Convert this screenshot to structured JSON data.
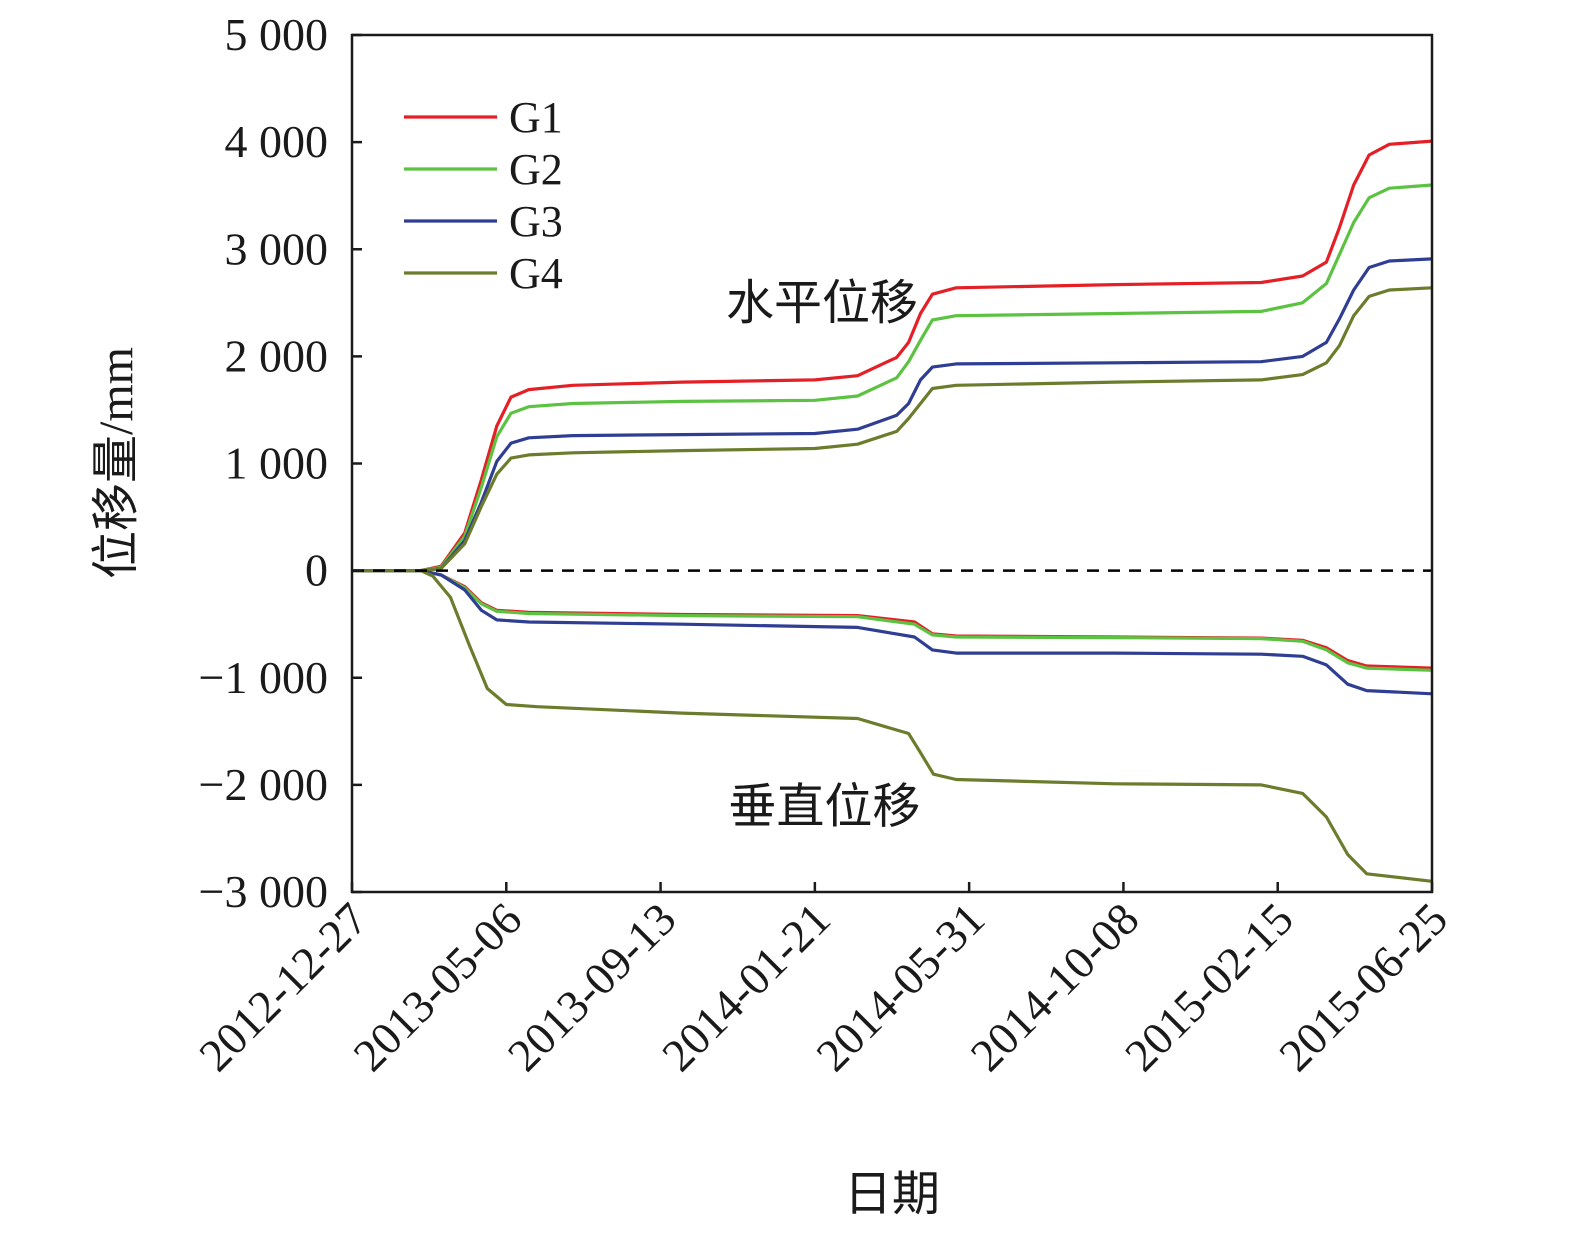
{
  "chart_data": {
    "type": "line",
    "title": "",
    "xlabel": "日期",
    "ylabel": "位移量/mm",
    "x_ticks": [
      "2012-12-27",
      "2013-05-06",
      "2013-09-13",
      "2014-01-21",
      "2014-05-31",
      "2014-10-08",
      "2015-02-15",
      "2015-06-25"
    ],
    "xlim": [
      "2012-12-27",
      "2015-06-25"
    ],
    "ylim": [
      -3000,
      5000
    ],
    "y_ticks": [
      -3000,
      -2000,
      -1000,
      0,
      1000,
      2000,
      3000,
      4000,
      5000
    ],
    "y_tick_labels": [
      "−3 000",
      "−2 000",
      "−1 000",
      "0",
      "1 000",
      "2 000",
      "3 000",
      "4 000",
      "5 000"
    ],
    "grid": false,
    "legend_position": "top-left",
    "zero_line": "dashed",
    "annotations": [
      {
        "text": "水平位移",
        "x": "2014-01-27",
        "y": 2500
      },
      {
        "text": "垂直位移",
        "x": "2014-01-29",
        "y": -2200
      }
    ],
    "series": [
      {
        "name": "G1",
        "color": "#e41f26",
        "group": "horizontal",
        "points": [
          [
            "2012-12-27",
            0
          ],
          [
            "2013-02-23",
            0
          ],
          [
            "2013-03-12",
            40
          ],
          [
            "2013-04-01",
            350
          ],
          [
            "2013-04-15",
            850
          ],
          [
            "2013-04-28",
            1350
          ],
          [
            "2013-05-10",
            1620
          ],
          [
            "2013-05-25",
            1690
          ],
          [
            "2013-07-01",
            1730
          ],
          [
            "2013-10-01",
            1760
          ],
          [
            "2014-01-21",
            1780
          ],
          [
            "2014-02-26",
            1820
          ],
          [
            "2014-03-31",
            1990
          ],
          [
            "2014-04-10",
            2130
          ],
          [
            "2014-04-20",
            2400
          ],
          [
            "2014-04-30",
            2580
          ],
          [
            "2014-05-20",
            2640
          ],
          [
            "2014-10-01",
            2670
          ],
          [
            "2015-02-01",
            2690
          ],
          [
            "2015-03-08",
            2750
          ],
          [
            "2015-03-28",
            2880
          ],
          [
            "2015-04-08",
            3200
          ],
          [
            "2015-04-20",
            3600
          ],
          [
            "2015-05-03",
            3880
          ],
          [
            "2015-05-20",
            3980
          ],
          [
            "2015-06-25",
            4010
          ]
        ]
      },
      {
        "name": "G2",
        "color": "#5cc242",
        "group": "horizontal",
        "points": [
          [
            "2012-12-27",
            0
          ],
          [
            "2013-02-23",
            0
          ],
          [
            "2013-03-12",
            30
          ],
          [
            "2013-04-01",
            320
          ],
          [
            "2013-04-15",
            780
          ],
          [
            "2013-04-28",
            1250
          ],
          [
            "2013-05-10",
            1470
          ],
          [
            "2013-05-25",
            1530
          ],
          [
            "2013-07-01",
            1560
          ],
          [
            "2013-10-01",
            1580
          ],
          [
            "2014-01-21",
            1590
          ],
          [
            "2014-02-26",
            1630
          ],
          [
            "2014-03-31",
            1800
          ],
          [
            "2014-04-10",
            1950
          ],
          [
            "2014-04-20",
            2150
          ],
          [
            "2014-04-30",
            2340
          ],
          [
            "2014-05-20",
            2380
          ],
          [
            "2014-10-01",
            2400
          ],
          [
            "2015-02-01",
            2420
          ],
          [
            "2015-03-08",
            2500
          ],
          [
            "2015-03-28",
            2680
          ],
          [
            "2015-04-08",
            2950
          ],
          [
            "2015-04-20",
            3250
          ],
          [
            "2015-05-03",
            3480
          ],
          [
            "2015-05-20",
            3570
          ],
          [
            "2015-06-25",
            3600
          ]
        ]
      },
      {
        "name": "G3",
        "color": "#2f3e93",
        "group": "horizontal",
        "points": [
          [
            "2012-12-27",
            0
          ],
          [
            "2013-02-23",
            0
          ],
          [
            "2013-03-12",
            20
          ],
          [
            "2013-04-01",
            280
          ],
          [
            "2013-04-15",
            640
          ],
          [
            "2013-04-28",
            1020
          ],
          [
            "2013-05-10",
            1190
          ],
          [
            "2013-05-25",
            1240
          ],
          [
            "2013-07-01",
            1260
          ],
          [
            "2013-10-01",
            1270
          ],
          [
            "2014-01-21",
            1280
          ],
          [
            "2014-02-26",
            1320
          ],
          [
            "2014-03-31",
            1450
          ],
          [
            "2014-04-10",
            1560
          ],
          [
            "2014-04-20",
            1780
          ],
          [
            "2014-04-30",
            1900
          ],
          [
            "2014-05-20",
            1930
          ],
          [
            "2014-10-01",
            1940
          ],
          [
            "2015-02-01",
            1950
          ],
          [
            "2015-03-08",
            2000
          ],
          [
            "2015-03-28",
            2130
          ],
          [
            "2015-04-08",
            2350
          ],
          [
            "2015-04-20",
            2620
          ],
          [
            "2015-05-03",
            2830
          ],
          [
            "2015-05-20",
            2890
          ],
          [
            "2015-06-25",
            2910
          ]
        ]
      },
      {
        "name": "G4",
        "color": "#6b7d2c",
        "group": "horizontal",
        "points": [
          [
            "2012-12-27",
            0
          ],
          [
            "2013-02-23",
            0
          ],
          [
            "2013-03-12",
            20
          ],
          [
            "2013-04-01",
            250
          ],
          [
            "2013-04-15",
            600
          ],
          [
            "2013-04-28",
            900
          ],
          [
            "2013-05-10",
            1050
          ],
          [
            "2013-05-25",
            1080
          ],
          [
            "2013-07-01",
            1100
          ],
          [
            "2013-10-01",
            1120
          ],
          [
            "2014-01-21",
            1140
          ],
          [
            "2014-02-26",
            1180
          ],
          [
            "2014-03-31",
            1300
          ],
          [
            "2014-04-10",
            1420
          ],
          [
            "2014-04-20",
            1560
          ],
          [
            "2014-04-30",
            1700
          ],
          [
            "2014-05-20",
            1730
          ],
          [
            "2014-10-01",
            1760
          ],
          [
            "2015-02-01",
            1780
          ],
          [
            "2015-03-08",
            1830
          ],
          [
            "2015-03-28",
            1940
          ],
          [
            "2015-04-08",
            2100
          ],
          [
            "2015-04-20",
            2380
          ],
          [
            "2015-05-03",
            2560
          ],
          [
            "2015-05-20",
            2620
          ],
          [
            "2015-06-25",
            2640
          ]
        ]
      },
      {
        "name": "G1",
        "color": "#e41f26",
        "group": "vertical",
        "points": [
          [
            "2012-12-27",
            0
          ],
          [
            "2013-02-23",
            0
          ],
          [
            "2013-03-12",
            -40
          ],
          [
            "2013-04-01",
            -150
          ],
          [
            "2013-04-15",
            -300
          ],
          [
            "2013-04-28",
            -370
          ],
          [
            "2013-05-25",
            -390
          ],
          [
            "2013-10-01",
            -410
          ],
          [
            "2014-02-26",
            -420
          ],
          [
            "2014-04-15",
            -480
          ],
          [
            "2014-04-30",
            -590
          ],
          [
            "2014-05-20",
            -610
          ],
          [
            "2014-10-01",
            -620
          ],
          [
            "2015-02-01",
            -630
          ],
          [
            "2015-03-08",
            -650
          ],
          [
            "2015-03-28",
            -720
          ],
          [
            "2015-04-15",
            -840
          ],
          [
            "2015-05-01",
            -890
          ],
          [
            "2015-06-25",
            -910
          ]
        ]
      },
      {
        "name": "G2",
        "color": "#5cc242",
        "group": "vertical",
        "points": [
          [
            "2012-12-27",
            0
          ],
          [
            "2013-02-23",
            0
          ],
          [
            "2013-03-12",
            -40
          ],
          [
            "2013-04-01",
            -160
          ],
          [
            "2013-04-15",
            -310
          ],
          [
            "2013-04-28",
            -380
          ],
          [
            "2013-05-25",
            -400
          ],
          [
            "2013-10-01",
            -420
          ],
          [
            "2014-02-26",
            -430
          ],
          [
            "2014-04-15",
            -500
          ],
          [
            "2014-04-30",
            -600
          ],
          [
            "2014-05-20",
            -620
          ],
          [
            "2014-10-01",
            -625
          ],
          [
            "2015-02-01",
            -635
          ],
          [
            "2015-03-08",
            -660
          ],
          [
            "2015-03-28",
            -740
          ],
          [
            "2015-04-15",
            -860
          ],
          [
            "2015-05-01",
            -910
          ],
          [
            "2015-06-25",
            -930
          ]
        ]
      },
      {
        "name": "G3",
        "color": "#2f3e93",
        "group": "vertical",
        "points": [
          [
            "2012-12-27",
            0
          ],
          [
            "2013-02-23",
            0
          ],
          [
            "2013-03-12",
            -40
          ],
          [
            "2013-04-01",
            -180
          ],
          [
            "2013-04-15",
            -370
          ],
          [
            "2013-04-28",
            -460
          ],
          [
            "2013-05-25",
            -480
          ],
          [
            "2013-10-01",
            -500
          ],
          [
            "2014-02-26",
            -530
          ],
          [
            "2014-04-15",
            -620
          ],
          [
            "2014-04-30",
            -740
          ],
          [
            "2014-05-20",
            -770
          ],
          [
            "2014-10-01",
            -770
          ],
          [
            "2015-02-01",
            -780
          ],
          [
            "2015-03-08",
            -800
          ],
          [
            "2015-03-28",
            -880
          ],
          [
            "2015-04-15",
            -1060
          ],
          [
            "2015-05-01",
            -1120
          ],
          [
            "2015-06-25",
            -1150
          ]
        ]
      },
      {
        "name": "G4",
        "color": "#6b7d2c",
        "group": "vertical",
        "points": [
          [
            "2012-12-27",
            0
          ],
          [
            "2013-02-23",
            0
          ],
          [
            "2013-03-05",
            -50
          ],
          [
            "2013-03-20",
            -250
          ],
          [
            "2013-04-05",
            -700
          ],
          [
            "2013-04-20",
            -1100
          ],
          [
            "2013-05-06",
            -1250
          ],
          [
            "2013-06-01",
            -1270
          ],
          [
            "2013-10-01",
            -1330
          ],
          [
            "2014-02-26",
            -1380
          ],
          [
            "2014-04-10",
            -1520
          ],
          [
            "2014-04-20",
            -1700
          ],
          [
            "2014-05-01",
            -1900
          ],
          [
            "2014-05-20",
            -1950
          ],
          [
            "2014-10-01",
            -1990
          ],
          [
            "2015-02-01",
            -2000
          ],
          [
            "2015-03-08",
            -2080
          ],
          [
            "2015-03-28",
            -2300
          ],
          [
            "2015-04-15",
            -2650
          ],
          [
            "2015-05-01",
            -2830
          ],
          [
            "2015-06-25",
            -2900
          ]
        ]
      }
    ]
  }
}
